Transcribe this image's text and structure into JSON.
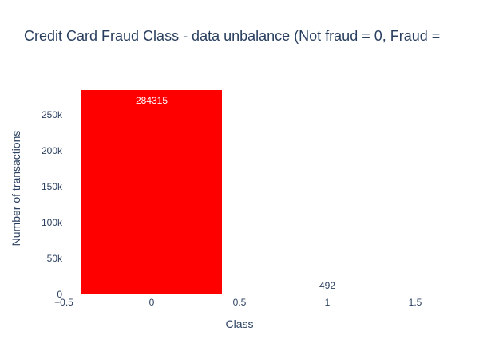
{
  "chart_data": {
    "type": "bar",
    "title": "Credit Card Fraud Class - data unbalance (Not fraud = 0, Fraud =",
    "xlabel": "Class",
    "ylabel": "Number of transactions",
    "x": [
      0,
      1
    ],
    "values": [
      284315,
      492
    ],
    "data_labels": [
      "284315",
      "492"
    ],
    "bar_colors": [
      "#ff0000",
      "#ffc0cb"
    ],
    "xlim": [
      -0.5,
      1.5
    ],
    "ylim": [
      0,
      284315
    ],
    "x_ticks": [
      -0.5,
      0,
      0.5,
      1,
      1.5
    ],
    "x_tick_labels": [
      "−0.5",
      "0",
      "0.5",
      "1",
      "1.5"
    ],
    "y_ticks": [
      0,
      50000,
      100000,
      150000,
      200000,
      250000
    ],
    "y_tick_labels": [
      "0",
      "50k",
      "100k",
      "150k",
      "200k",
      "250k"
    ],
    "grid": false,
    "legend": "none",
    "text_color": "#2a3f5f"
  }
}
